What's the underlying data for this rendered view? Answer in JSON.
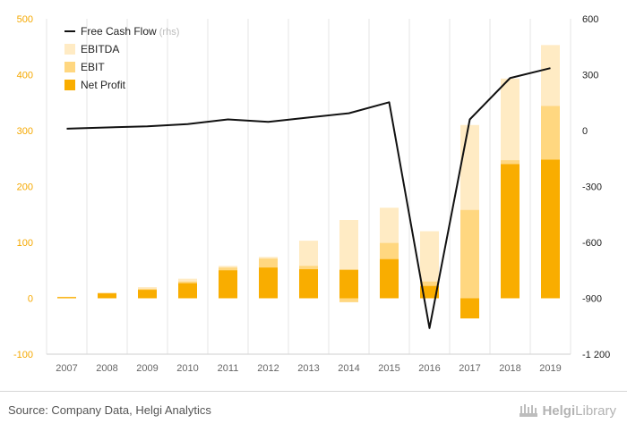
{
  "chart_data": {
    "type": "bar+line",
    "categories": [
      "2007",
      "2008",
      "2009",
      "2010",
      "2011",
      "2012",
      "2013",
      "2014",
      "2015",
      "2016",
      "2017",
      "2018",
      "2019"
    ],
    "left_axis": {
      "ylim": [
        -100,
        500
      ],
      "ticks": [
        -100,
        0,
        100,
        200,
        300,
        400,
        500
      ],
      "tick_labels": [
        "-100",
        "0",
        "100",
        "200",
        "300",
        "400",
        "500"
      ]
    },
    "right_axis": {
      "ylim": [
        -1200,
        600
      ],
      "ticks": [
        -1200,
        -900,
        -600,
        -300,
        0,
        300,
        600
      ],
      "tick_labels": [
        "-1 200",
        "-900",
        "-600",
        "-300",
        "0",
        "300",
        "600"
      ]
    },
    "series": [
      {
        "name": "EBITDA",
        "kind": "bar",
        "axis": "left",
        "color": "#ffebc4",
        "values": [
          3,
          10,
          20,
          35,
          58,
          74,
          103,
          140,
          162,
          120,
          310,
          393,
          453
        ]
      },
      {
        "name": "EBIT",
        "kind": "bar",
        "axis": "left",
        "color": "#ffd780",
        "values": [
          2,
          9,
          17,
          30,
          55,
          71,
          58,
          -7,
          99,
          30,
          158,
          247,
          344
        ]
      },
      {
        "name": "Net Profit",
        "kind": "bar",
        "axis": "left",
        "color": "#f9ad00",
        "values": [
          2,
          9,
          15,
          27,
          50,
          55,
          52,
          51,
          70,
          22,
          -36,
          240,
          248
        ]
      },
      {
        "name": "Free Cash Flow",
        "label_suffix": "(rhs)",
        "kind": "line",
        "axis": "right",
        "color": "#111111",
        "values": [
          10,
          17,
          23,
          35,
          60,
          47,
          70,
          93,
          152,
          -1060,
          60,
          282,
          335
        ]
      }
    ],
    "legend": {
      "position": "top-left"
    },
    "grid": "vertical"
  },
  "footer": {
    "source": "Source: Company Data, Helgi Analytics",
    "brand_part1": "Helgi",
    "brand_part2": "Library"
  }
}
